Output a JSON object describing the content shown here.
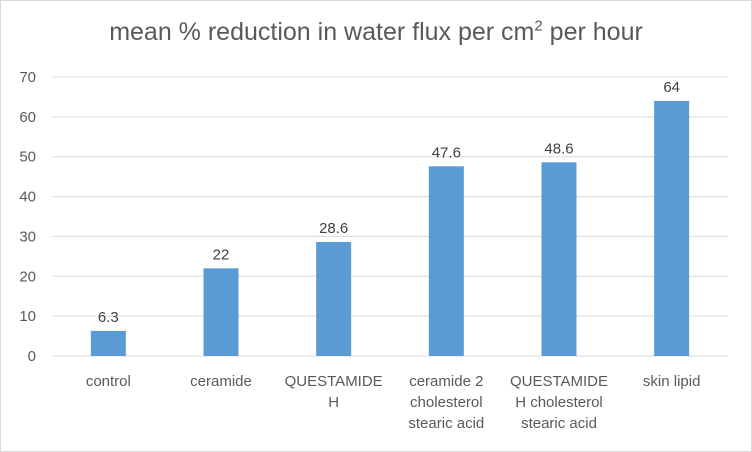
{
  "chart_data": {
    "type": "bar",
    "title": "mean % reduction in water flux per cm",
    "title_superscript": "2",
    "title_suffix": " per hour",
    "categories": [
      [
        "control"
      ],
      [
        "ceramide"
      ],
      [
        "QUESTAMIDE",
        "H"
      ],
      [
        "ceramide 2",
        "cholesterol",
        "stearic acid"
      ],
      [
        "QUESTAMIDE",
        "H cholesterol",
        "stearic acid"
      ],
      [
        "skin lipid"
      ]
    ],
    "values": [
      6.3,
      22,
      28.6,
      47.6,
      48.6,
      64
    ],
    "data_labels": [
      "6.3",
      "22",
      "28.6",
      "47.6",
      "48.6",
      "64"
    ],
    "yticks": [
      "0",
      "10",
      "20",
      "30",
      "40",
      "50",
      "60",
      "70"
    ],
    "ylim": [
      0,
      70
    ],
    "grid": true,
    "legend": "none",
    "bar_color": "#5b9bd5",
    "grid_color": "#d9d9d9"
  }
}
